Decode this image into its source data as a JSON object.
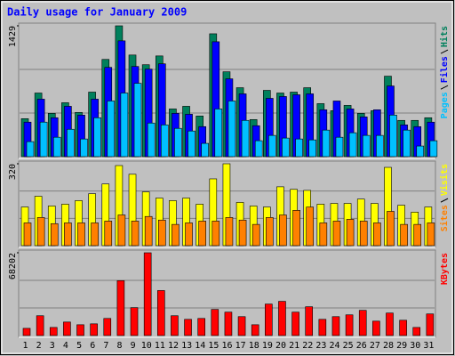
{
  "chart_data": [
    {
      "type": "bar",
      "title": "Daily usage for January 2009",
      "ylim": [
        0,
        1429
      ],
      "yticks": [
        1429
      ],
      "series": [
        {
          "name": "Hits",
          "color": "#00805c",
          "values": [
            415,
            695,
            473,
            589,
            483,
            705,
            1062,
            1429,
            1110,
            1004,
            1100,
            521,
            550,
            444,
            1342,
            927,
            753,
            405,
            724,
            695,
            705,
            753,
            579,
            502,
            560,
            473,
            502,
            879,
            396,
            396,
            425
          ]
        },
        {
          "name": "Files",
          "color": "#0000ff",
          "values": [
            377,
            628,
            425,
            550,
            454,
            628,
            975,
            1265,
            985,
            956,
            1014,
            473,
            463,
            328,
            1255,
            850,
            686,
            338,
            637,
            657,
            676,
            686,
            512,
            608,
            521,
            434,
            512,
            772,
            347,
            328,
            377
          ]
        },
        {
          "name": "Pages",
          "color": "#00c0ff",
          "values": [
            164,
            377,
            212,
            299,
            193,
            425,
            608,
            695,
            801,
            367,
            347,
            309,
            280,
            145,
            521,
            608,
            396,
            174,
            232,
            203,
            193,
            183,
            290,
            212,
            261,
            232,
            232,
            454,
            290,
            116,
            174
          ]
        }
      ]
    },
    {
      "type": "bar",
      "ylim": [
        0,
        320
      ],
      "yticks": [
        320
      ],
      "series": [
        {
          "name": "Visits",
          "color": "#ffff00",
          "values": [
            151,
            193,
            155,
            162,
            176,
            203,
            241,
            313,
            279,
            210,
            186,
            176,
            186,
            162,
            261,
            320,
            169,
            155,
            151,
            230,
            220,
            216,
            162,
            165,
            165,
            182,
            165,
            306,
            158,
            131,
            151
          ]
        },
        {
          "name": "Sites",
          "color": "#ff8000",
          "values": [
            89,
            110,
            86,
            89,
            89,
            89,
            96,
            120,
            96,
            114,
            100,
            83,
            89,
            96,
            96,
            110,
            100,
            83,
            110,
            120,
            138,
            151,
            89,
            96,
            103,
            96,
            89,
            134,
            83,
            83,
            89
          ]
        }
      ]
    },
    {
      "type": "bar",
      "ylim": [
        0,
        68202
      ],
      "yticks": [
        68202
      ],
      "categories": [
        "1",
        "2",
        "3",
        "4",
        "5",
        "6",
        "7",
        "8",
        "9",
        "10",
        "11",
        "12",
        "13",
        "14",
        "15",
        "16",
        "17",
        "18",
        "19",
        "20",
        "21",
        "22",
        "23",
        "24",
        "25",
        "26",
        "27",
        "28",
        "29",
        "30",
        "31"
      ],
      "category_colors": [
        "#000000",
        "#000000",
        "#00805c",
        "#00805c",
        "#000000",
        "#000000",
        "#000000",
        "#000000",
        "#000000",
        "#00805c",
        "#00805c",
        "#000000",
        "#000000",
        "#000000",
        "#000000",
        "#000000",
        "#00805c",
        "#00805c",
        "#000000",
        "#000000",
        "#000000",
        "#000000",
        "#000000",
        "#00805c",
        "#00805c",
        "#000000",
        "#000000",
        "#000000",
        "#000000",
        "#000000",
        "#00805c"
      ],
      "series": [
        {
          "name": "KBytes",
          "color": "#ff0000",
          "values": [
            5931,
            16309,
            6672,
            11120,
            8896,
            9637,
            14085,
            45224,
            22981,
            68202,
            37069,
            16309,
            13344,
            14085,
            21498,
            19274,
            15568,
            8896,
            25946,
            28170,
            19274,
            23722,
            13344,
            15568,
            17051,
            20757,
            11861,
            18532,
            12602,
            6672,
            17792
          ]
        }
      ]
    }
  ]
}
